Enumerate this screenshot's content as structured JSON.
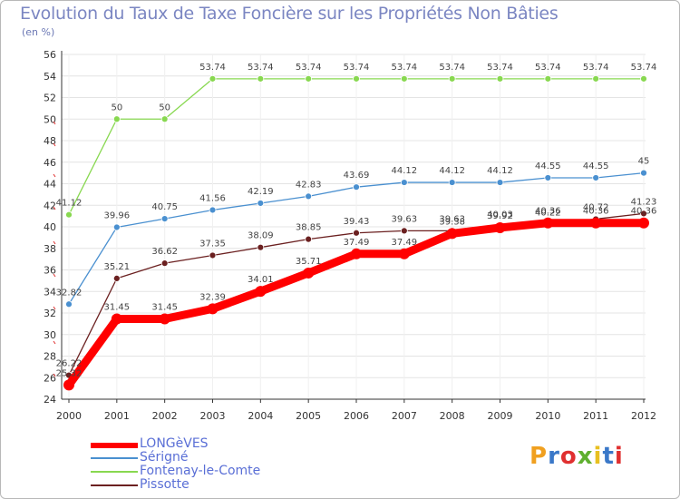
{
  "title": "Evolution du Taux de Taxe Foncière sur les Propriétés Non Bâties",
  "unit_label": "(en %)",
  "logo_text": "Proxiti",
  "colors": {
    "title": "#7b86c2",
    "grid": "#e4e4e4",
    "longeves": "#ff0000",
    "serigne": "#4a90d0",
    "fontenay": "#88d850",
    "pissotte": "#6b2020"
  },
  "chart_data": {
    "type": "line",
    "title": "Evolution du Taux de Taxe Foncière sur les Propriétés Non Bâties",
    "ylabel": "(en %)",
    "xlabel": "",
    "x": [
      "2000",
      "2001",
      "2002",
      "2003",
      "2004",
      "2005",
      "2006",
      "2007",
      "2008",
      "2009",
      "2010",
      "2011",
      "2012"
    ],
    "ylim": [
      24,
      56
    ],
    "yticks": [
      24,
      26,
      28,
      30,
      32,
      34,
      36,
      38,
      40,
      42,
      44,
      46,
      48,
      50,
      52,
      54,
      56
    ],
    "series": [
      {
        "name": "LONGèVES",
        "color": "#ff0000",
        "values": [
          25.32,
          31.45,
          31.45,
          32.39,
          34.01,
          35.71,
          37.49,
          37.49,
          39.38,
          39.92,
          40.36,
          40.36,
          40.36
        ],
        "labels": [
          "25.32",
          "31.45",
          "31.45",
          "32.39",
          "34.01",
          "35.71",
          "37.49",
          "37.49",
          "39.38",
          "39.92",
          "40.36",
          "40.36",
          "40.36"
        ]
      },
      {
        "name": "Sérigné",
        "color": "#4a90d0",
        "values": [
          32.82,
          39.96,
          40.75,
          41.56,
          42.19,
          42.83,
          43.69,
          44.12,
          44.12,
          44.12,
          44.55,
          44.55,
          45
        ],
        "labels": [
          "32.82",
          "39.96",
          "40.75",
          "41.56",
          "42.19",
          "42.83",
          "43.69",
          "44.12",
          "44.12",
          "44.12",
          "44.55",
          "44.55",
          "45"
        ]
      },
      {
        "name": "Fontenay-le-Comte",
        "color": "#88d850",
        "values": [
          41.12,
          50,
          50,
          53.74,
          53.74,
          53.74,
          53.74,
          53.74,
          53.74,
          53.74,
          53.74,
          53.74,
          53.74
        ],
        "labels": [
          "41.12",
          "50",
          "50",
          "53.74",
          "53.74",
          "53.74",
          "53.74",
          "53.74",
          "53.74",
          "53.74",
          "53.74",
          "53.74",
          "53.74"
        ]
      },
      {
        "name": "Pissotte",
        "color": "#6b2020",
        "values": [
          26.22,
          35.21,
          36.62,
          37.35,
          38.09,
          38.85,
          39.43,
          39.63,
          39.63,
          40.03,
          40.22,
          40.72,
          41.23
        ],
        "labels": [
          "26.22",
          "35.21",
          "36.62",
          "37.35",
          "38.09",
          "38.85",
          "39.43",
          "39.63",
          "39.63",
          "40.03",
          "40.22",
          "40.72",
          "41.23"
        ]
      }
    ]
  }
}
